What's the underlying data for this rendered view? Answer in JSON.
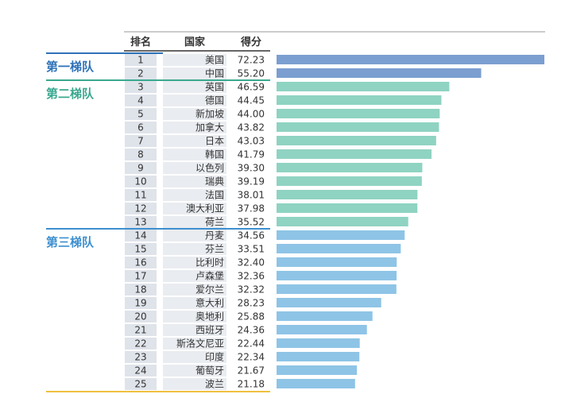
{
  "headers": {
    "rank": "排名",
    "country": "国家",
    "score": "得分"
  },
  "tiers": [
    {
      "label": "第一梯队",
      "color": "#2e72b8",
      "from_rank": 1,
      "to_rank": 2
    },
    {
      "label": "第二梯队",
      "color": "#3aa88f",
      "from_rank": 3,
      "to_rank": 13
    },
    {
      "label": "第三梯队",
      "color": "#3d8fcf",
      "from_rank": 14,
      "to_rank": 25
    }
  ],
  "colors": {
    "tier1_bar": "#7b9fd0",
    "tier2_bar": "#8fd3c2",
    "tier3_bar": "#8ec4e6",
    "rank_cell": "#dfe3ea",
    "country_cell": "#e9ecf0",
    "bottom_rule": "#f0c040"
  },
  "chart_data": {
    "type": "bar",
    "orientation": "horizontal",
    "ranks": [
      "1",
      "2",
      "3",
      "4",
      "5",
      "6",
      "7",
      "8",
      "9",
      "10",
      "11",
      "12",
      "13",
      "14",
      "15",
      "16",
      "17",
      "18",
      "19",
      "20",
      "21",
      "22",
      "23",
      "24",
      "25"
    ],
    "categories": [
      "美国",
      "中国",
      "英国",
      "德国",
      "新加坡",
      "加拿大",
      "日本",
      "韩国",
      "以色列",
      "瑞典",
      "法国",
      "澳大利亚",
      "荷兰",
      "丹麦",
      "芬兰",
      "比利时",
      "卢森堡",
      "爱尔兰",
      "意大利",
      "奥地利",
      "西班牙",
      "斯洛文尼亚",
      "印度",
      "葡萄牙",
      "波兰"
    ],
    "values": [
      72.23,
      55.2,
      46.59,
      44.45,
      44.0,
      43.82,
      43.03,
      41.79,
      39.3,
      39.19,
      38.01,
      37.98,
      35.52,
      34.56,
      33.51,
      32.4,
      32.36,
      32.32,
      28.23,
      25.88,
      24.36,
      22.44,
      22.34,
      21.67,
      21.18
    ],
    "value_labels": [
      "72.23",
      "55.20",
      "46.59",
      "44.45",
      "44.00",
      "43.82",
      "43.03",
      "41.79",
      "39.30",
      "39.19",
      "38.01",
      "37.98",
      "35.52",
      "34.56",
      "33.51",
      "32.40",
      "32.36",
      "32.32",
      "28.23",
      "25.88",
      "24.36",
      "22.44",
      "22.34",
      "21.67",
      "21.18"
    ],
    "xlim": [
      0,
      72.23
    ],
    "grid": false,
    "legend": "none"
  }
}
